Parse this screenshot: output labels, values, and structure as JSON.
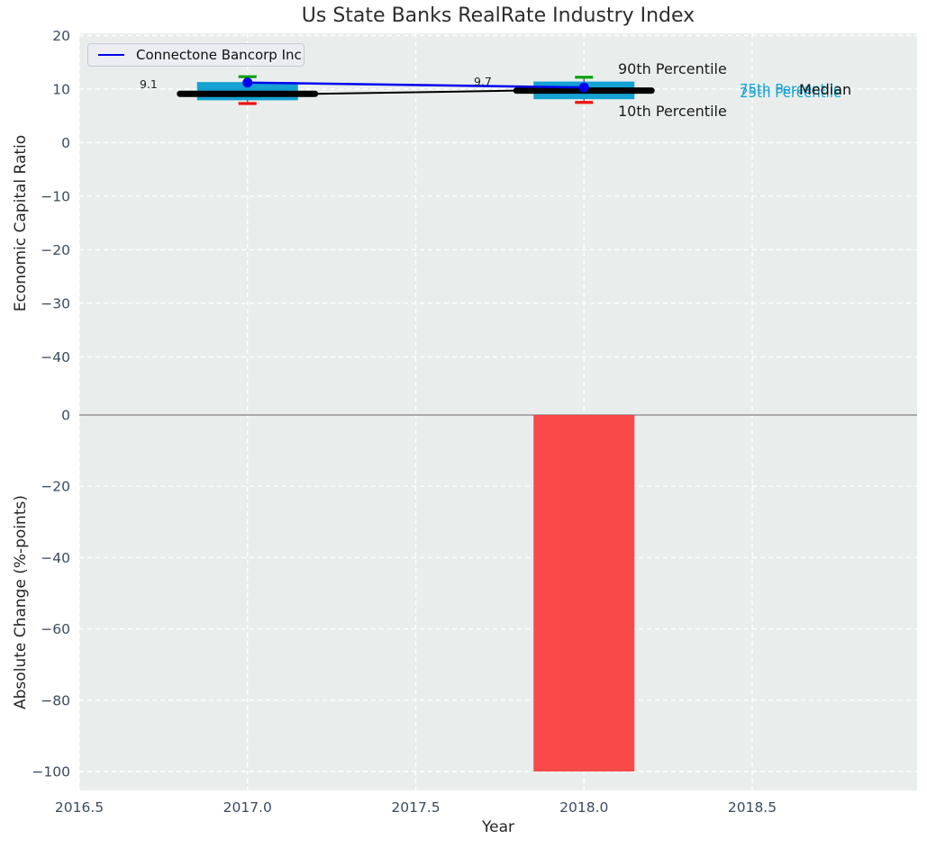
{
  "colors": {
    "background": "#e9eeec",
    "grid": "#ffffff",
    "tick": "#3b4c60",
    "box": "#14a2d2",
    "whisker": "#444444",
    "cap_top": "#00a000",
    "cap_bottom": "#ee1111",
    "median": "#000000",
    "series_line": "#0000ee",
    "bar": "#fa3c3c",
    "zero_line": "#aaaaaa"
  },
  "chart_data": [
    {
      "type": "boxplot-line",
      "title": "Us State Banks RealRate Industry Index",
      "ylabel": "Economic Capital Ratio",
      "ylim": [
        -50.5,
        20.4
      ],
      "yticks": [
        20,
        10,
        0,
        -10,
        -20,
        -30,
        -40
      ],
      "ytick_labels": [
        "20",
        "10",
        "0",
        "−10",
        "−20",
        "−30",
        "−40"
      ],
      "grid": true,
      "legend": {
        "position": "upper left",
        "entries": [
          "Connectone Bancorp Inc"
        ]
      },
      "x": [
        2017,
        2018
      ],
      "boxes": [
        {
          "year": 2017,
          "p10": 7.3,
          "p25": 7.9,
          "median": 9.1,
          "p75": 11.3,
          "p90": 12.3
        },
        {
          "year": 2018,
          "p10": 7.5,
          "p25": 8.1,
          "median": 9.7,
          "p75": 11.4,
          "p90": 12.2
        }
      ],
      "series": [
        {
          "name": "Connectone Bancorp Inc",
          "x": [
            2017,
            2018
          ],
          "values": [
            11.2,
            10.3
          ]
        }
      ],
      "median_value_labels": [
        "9.1",
        "9.7"
      ],
      "annotations": {
        "p90_label": "90th Percentile",
        "p10_label": "10th Percentile",
        "p75_label": "75th Percentile",
        "p25_label": "25th Percentile",
        "median_label": "Median"
      }
    },
    {
      "type": "bar",
      "ylabel": "Absolute Change (%-points)",
      "xlabel": "Year",
      "ylim": [
        -105.3,
        0.5
      ],
      "yticks": [
        0,
        -20,
        -40,
        -60,
        -80,
        -100
      ],
      "ytick_labels": [
        "0",
        "−20",
        "−40",
        "−60",
        "−80",
        "−100"
      ],
      "xlim": [
        2016.5,
        2018.99
      ],
      "xticks": [
        2016.5,
        2017.0,
        2017.5,
        2018.0,
        2018.5
      ],
      "xtick_labels": [
        "2016.5",
        "2017.0",
        "2017.5",
        "2018.0",
        "2018.5"
      ],
      "grid": true,
      "bars": [
        {
          "x": 2018,
          "value": -100
        }
      ]
    }
  ]
}
